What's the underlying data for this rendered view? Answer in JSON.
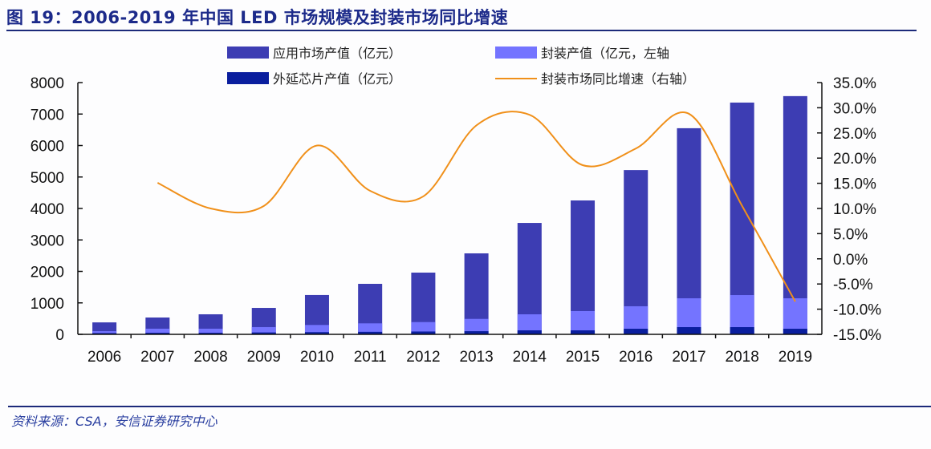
{
  "title": "图 19：2006-2019 年中国 LED 市场规模及封装市场同比增速",
  "source": "资料来源：CSA，安信证券研究中心",
  "colors": {
    "application": "#3d3db3",
    "packaging": "#7474ff",
    "chip": "#0a1e9e",
    "growth": "#f0901a",
    "title": "#1c2a8a"
  },
  "chart_data": {
    "type": "bar",
    "categories": [
      "2006",
      "2007",
      "2008",
      "2009",
      "2010",
      "2011",
      "2012",
      "2013",
      "2014",
      "2015",
      "2016",
      "2017",
      "2018",
      "2019"
    ],
    "series": [
      {
        "name": "应用市场产值（亿元）",
        "type": "bar",
        "axis": "left",
        "values": [
          380,
          535,
          637,
          840,
          1250,
          1605,
          1962,
          2573,
          3540,
          4255,
          5220,
          6550,
          7365,
          7570
        ]
      },
      {
        "name": "封装产值（亿元，左轴",
        "type": "bar",
        "axis": "left",
        "values": [
          100,
          180,
          180,
          230,
          298,
          349,
          390,
          491,
          637,
          739,
          892,
          1146,
          1248,
          1146
        ]
      },
      {
        "name": "外延芯片产值（亿元）",
        "type": "bar",
        "axis": "left",
        "values": [
          40,
          50,
          50,
          60,
          70,
          80,
          90,
          100,
          127,
          127,
          178,
          229,
          229,
          178
        ]
      },
      {
        "name": "封装市场同比增速（右轴）",
        "type": "line",
        "axis": "right",
        "values": [
          null,
          15.1,
          10.0,
          10.5,
          22.5,
          13.5,
          12.4,
          26.5,
          28.6,
          18.6,
          21.9,
          28.8,
          10.5,
          -8.5
        ]
      }
    ],
    "yleft": {
      "lim": [
        0,
        8000
      ],
      "ticks": [
        "0",
        "1000",
        "2000",
        "3000",
        "4000",
        "5000",
        "6000",
        "7000",
        "8000"
      ]
    },
    "yright": {
      "lim": [
        -15,
        35
      ],
      "ticks": [
        "-15.0%",
        "-10.0%",
        "-5.0%",
        "0.0%",
        "5.0%",
        "10.0%",
        "15.0%",
        "20.0%",
        "25.0%",
        "30.0%",
        "35.0%"
      ]
    },
    "legend": "top",
    "grid": false
  }
}
